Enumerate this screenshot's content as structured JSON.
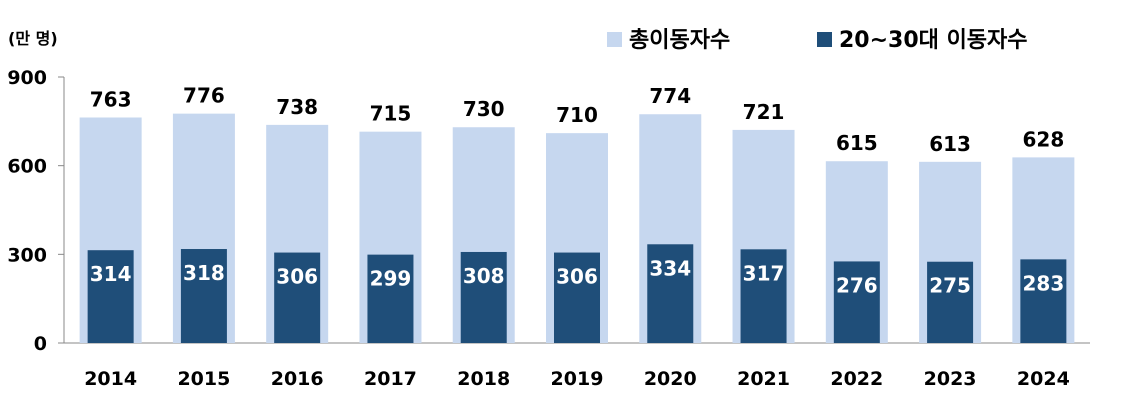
{
  "chart_data": {
    "type": "bar",
    "unit_label": "(만 명)",
    "categories": [
      "2014",
      "2015",
      "2016",
      "2017",
      "2018",
      "2019",
      "2020",
      "2021",
      "2022",
      "2023",
      "2024"
    ],
    "series": [
      {
        "name": "총이동자수",
        "color": "#c6d7ef",
        "values": [
          763,
          776,
          738,
          715,
          730,
          710,
          774,
          721,
          615,
          613,
          628
        ]
      },
      {
        "name": "20~30대 이동자수",
        "color": "#1f4e79",
        "values": [
          314,
          318,
          306,
          299,
          308,
          306,
          334,
          317,
          276,
          275,
          283
        ]
      }
    ],
    "yticks": [
      0,
      300,
      600,
      900
    ],
    "ylim": [
      0,
      900
    ],
    "legend_position": "top-right",
    "grid": false
  }
}
